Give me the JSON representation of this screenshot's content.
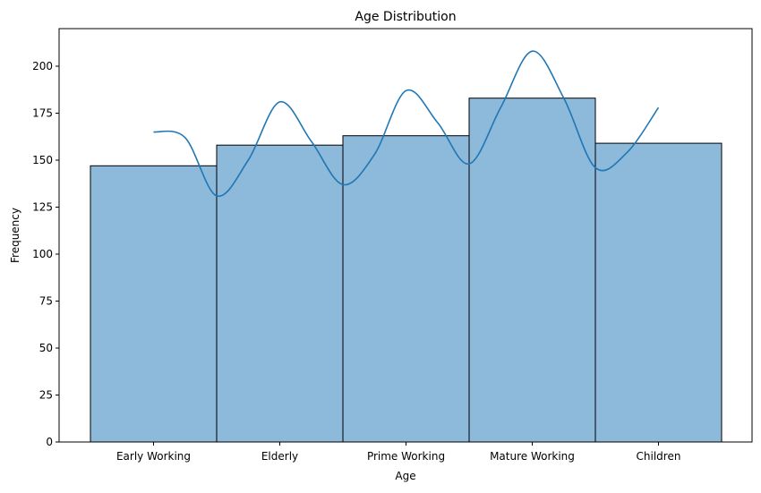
{
  "chart_data": {
    "type": "bar",
    "title": "Age Distribution",
    "xlabel": "Age",
    "ylabel": "Frequency",
    "categories": [
      "Early Working",
      "Elderly",
      "Prime Working",
      "Mature Working",
      "Children"
    ],
    "values": [
      147,
      158,
      163,
      183,
      159
    ],
    "ylim": [
      0,
      220
    ],
    "yticks": [
      0,
      25,
      50,
      75,
      100,
      125,
      150,
      175,
      200
    ],
    "grid": false,
    "legend": "none",
    "bar_color": "#8db9db",
    "bar_edge_color": "#000000",
    "kde_color": "#1f77b4",
    "kde_curve": {
      "x": [
        0.0,
        0.25,
        0.5,
        0.75,
        1.0,
        1.25,
        1.5,
        1.75,
        2.0,
        2.25,
        2.5,
        2.75,
        3.0,
        3.25,
        3.5,
        3.75,
        4.0
      ],
      "y": [
        165,
        162,
        131,
        150,
        181,
        160,
        137,
        153,
        187,
        170,
        148,
        178,
        208,
        183,
        146,
        154,
        178
      ]
    }
  }
}
